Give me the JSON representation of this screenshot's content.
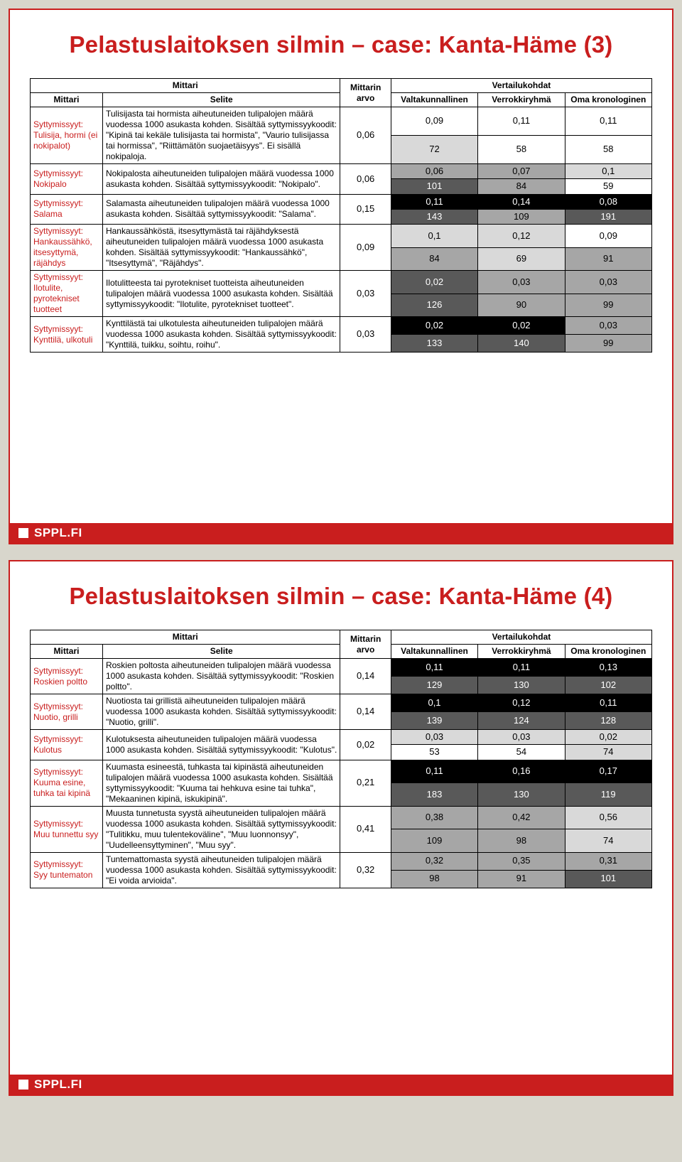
{
  "footer": "SPPL.FI",
  "col_widths": {
    "mittari": 100,
    "selite": 328,
    "arvo": 70,
    "comp": 120
  },
  "font_sizes": {
    "title": 33,
    "table_text": 12,
    "num": 13,
    "footer": 17
  },
  "shade_map": {
    "white": {
      "bg": "#ffffff",
      "fg": "#000000"
    },
    "lgray": {
      "bg": "#d9d9d9",
      "fg": "#000000"
    },
    "mgray": {
      "bg": "#a6a6a6",
      "fg": "#000000"
    },
    "dgray": {
      "bg": "#595959",
      "fg": "#ffffff"
    },
    "black": {
      "bg": "#000000",
      "fg": "#ffffff"
    }
  },
  "headers": {
    "mittari_group": "Mittari",
    "vertailu_group": "Vertailukohdat",
    "mittari": "Mittari",
    "selite": "Selite",
    "arvo": "Mittarin arvo",
    "valtak": "Valtakunnallinen",
    "verrokki": "Verrokkiryhmä",
    "oma": "Oma kronologinen"
  },
  "slides": [
    {
      "title": "Pelastuslaitoksen silmin – case: Kanta-Häme (3)",
      "rows": [
        {
          "mittari": "Syttymissyyt: Tulisija, hormi (ei nokipalot)",
          "selite": "Tulisijasta tai hormista aiheutuneiden tulipalojen määrä vuodessa 1000 asukasta kohden. Sisältää syttymissyykoodit: \"Kipinä tai kekäle tulisijasta tai hormista\", \"Vaurio tulisijassa tai hormissa\", \"Riittämätön suojaetäisyys\". Ei sisällä nokipaloja.",
          "arvo": "0,06",
          "cells": [
            [
              {
                "v": "0,09",
                "s": "white"
              },
              {
                "v": "0,11",
                "s": "white"
              },
              {
                "v": "0,11",
                "s": "white"
              }
            ],
            [
              {
                "v": "72",
                "s": "lgray"
              },
              {
                "v": "58",
                "s": "white"
              },
              {
                "v": "58",
                "s": "white"
              }
            ]
          ]
        },
        {
          "mittari": "Syttymissyyt: Nokipalo",
          "selite": "Nokipalosta aiheutuneiden tulipalojen määrä vuodessa 1000 asukasta kohden. Sisältää syttymissyykoodit: \"Nokipalo\".",
          "arvo": "0,06",
          "cells": [
            [
              {
                "v": "0,06",
                "s": "mgray"
              },
              {
                "v": "0,07",
                "s": "mgray"
              },
              {
                "v": "0,1",
                "s": "lgray"
              }
            ],
            [
              {
                "v": "101",
                "s": "dgray"
              },
              {
                "v": "84",
                "s": "mgray"
              },
              {
                "v": "59",
                "s": "white"
              }
            ]
          ]
        },
        {
          "mittari": "Syttymissyyt: Salama",
          "selite": "Salamasta aiheutuneiden tulipalojen määrä vuodessa 1000 asukasta kohden. Sisältää syttymissyykoodit: \"Salama\".",
          "arvo": "0,15",
          "cells": [
            [
              {
                "v": "0,11",
                "s": "black"
              },
              {
                "v": "0,14",
                "s": "black"
              },
              {
                "v": "0,08",
                "s": "black"
              }
            ],
            [
              {
                "v": "143",
                "s": "dgray"
              },
              {
                "v": "109",
                "s": "mgray"
              },
              {
                "v": "191",
                "s": "dgray"
              }
            ]
          ]
        },
        {
          "mittari": "Syttymissyyt: Hankaussähkö, itsesyttymä, räjähdys",
          "selite": "Hankaussähköstä, itsesyttymästä tai räjähdyksestä aiheutuneiden tulipalojen määrä vuodessa 1000 asukasta kohden. Sisältää syttymissyykoodit: \"Hankaussähkö\", \"Itsesyttymä\", \"Räjähdys\".",
          "arvo": "0,09",
          "cells": [
            [
              {
                "v": "0,1",
                "s": "lgray"
              },
              {
                "v": "0,12",
                "s": "lgray"
              },
              {
                "v": "0,09",
                "s": "white"
              }
            ],
            [
              {
                "v": "84",
                "s": "mgray"
              },
              {
                "v": "69",
                "s": "lgray"
              },
              {
                "v": "91",
                "s": "mgray"
              }
            ]
          ]
        },
        {
          "mittari": "Syttymissyyt: Ilotulite, pyrotekniset tuotteet",
          "selite": "Ilotulitteesta tai pyrotekniset tuotteista aiheutuneiden tulipalojen määrä vuodessa 1000 asukasta kohden. Sisältää syttymissyykoodit: \"Ilotulite, pyrotekniset tuotteet\".",
          "arvo": "0,03",
          "cells": [
            [
              {
                "v": "0,02",
                "s": "dgray"
              },
              {
                "v": "0,03",
                "s": "mgray"
              },
              {
                "v": "0,03",
                "s": "mgray"
              }
            ],
            [
              {
                "v": "126",
                "s": "dgray"
              },
              {
                "v": "90",
                "s": "mgray"
              },
              {
                "v": "99",
                "s": "mgray"
              }
            ]
          ]
        },
        {
          "mittari": "Syttymissyyt: Kynttilä, ulkotuli",
          "selite": "Kynttilästä tai ulkotulesta aiheutuneiden tulipalojen määrä vuodessa 1000 asukasta kohden. Sisältää syttymissyykoodit: \"Kynttilä, tuikku, soihtu, roihu\".",
          "arvo": "0,03",
          "cells": [
            [
              {
                "v": "0,02",
                "s": "black"
              },
              {
                "v": "0,02",
                "s": "black"
              },
              {
                "v": "0,03",
                "s": "mgray"
              }
            ],
            [
              {
                "v": "133",
                "s": "dgray"
              },
              {
                "v": "140",
                "s": "dgray"
              },
              {
                "v": "99",
                "s": "mgray"
              }
            ]
          ]
        }
      ]
    },
    {
      "title": "Pelastuslaitoksen silmin – case: Kanta-Häme (4)",
      "rows": [
        {
          "mittari": "Syttymissyyt: Roskien poltto",
          "selite": "Roskien poltosta aiheutuneiden tulipalojen määrä vuodessa 1000 asukasta kohden. Sisältää syttymissyykoodit: \"Roskien poltto\".",
          "arvo": "0,14",
          "cells": [
            [
              {
                "v": "0,11",
                "s": "black"
              },
              {
                "v": "0,11",
                "s": "black"
              },
              {
                "v": "0,13",
                "s": "black"
              }
            ],
            [
              {
                "v": "129",
                "s": "dgray"
              },
              {
                "v": "130",
                "s": "dgray"
              },
              {
                "v": "102",
                "s": "dgray"
              }
            ]
          ]
        },
        {
          "mittari": "Syttymissyyt: Nuotio, grilli",
          "selite": "Nuotiosta tai grillistä aiheutuneiden tulipalojen määrä vuodessa 1000 asukasta kohden. Sisältää syttymissyykoodit: \"Nuotio, grilli\".",
          "arvo": "0,14",
          "cells": [
            [
              {
                "v": "0,1",
                "s": "black"
              },
              {
                "v": "0,12",
                "s": "black"
              },
              {
                "v": "0,11",
                "s": "black"
              }
            ],
            [
              {
                "v": "139",
                "s": "dgray"
              },
              {
                "v": "124",
                "s": "dgray"
              },
              {
                "v": "128",
                "s": "dgray"
              }
            ]
          ]
        },
        {
          "mittari": "Syttymissyyt: Kulotus",
          "selite": "Kulotuksesta aiheutuneiden tulipalojen määrä vuodessa 1000 asukasta kohden. Sisältää syttymissyykoodit: \"Kulotus\".",
          "arvo": "0,02",
          "cells": [
            [
              {
                "v": "0,03",
                "s": "lgray"
              },
              {
                "v": "0,03",
                "s": "lgray"
              },
              {
                "v": "0,02",
                "s": "lgray"
              }
            ],
            [
              {
                "v": "53",
                "s": "white"
              },
              {
                "v": "54",
                "s": "white"
              },
              {
                "v": "74",
                "s": "lgray"
              }
            ]
          ]
        },
        {
          "mittari": "Syttymissyyt: Kuuma esine, tuhka tai kipinä",
          "selite": "Kuumasta esineestä, tuhkasta tai kipinästä aiheutuneiden tulipalojen määrä vuodessa 1000 asukasta kohden. Sisältää syttymissyykoodit: \"Kuuma tai hehkuva esine tai tuhka\", \"Mekaaninen kipinä, iskukipinä\".",
          "arvo": "0,21",
          "cells": [
            [
              {
                "v": "0,11",
                "s": "black"
              },
              {
                "v": "0,16",
                "s": "black"
              },
              {
                "v": "0,17",
                "s": "black"
              }
            ],
            [
              {
                "v": "183",
                "s": "dgray"
              },
              {
                "v": "130",
                "s": "dgray"
              },
              {
                "v": "119",
                "s": "dgray"
              }
            ]
          ]
        },
        {
          "mittari": "Syttymissyyt: Muu tunnettu syy",
          "selite": "Muusta tunnetusta syystä aiheutuneiden tulipalojen määrä vuodessa 1000 asukasta kohden. Sisältää syttymissyykoodit: \"Tulitikku, muu tulentekoväline\", \"Muu luonnonsyy\", \"Uudelleensyttyminen\", \"Muu syy\".",
          "arvo": "0,41",
          "cells": [
            [
              {
                "v": "0,38",
                "s": "mgray"
              },
              {
                "v": "0,42",
                "s": "mgray"
              },
              {
                "v": "0,56",
                "s": "lgray"
              }
            ],
            [
              {
                "v": "109",
                "s": "mgray"
              },
              {
                "v": "98",
                "s": "mgray"
              },
              {
                "v": "74",
                "s": "lgray"
              }
            ]
          ]
        },
        {
          "mittari": "Syttymissyyt: Syy tuntematon",
          "selite": "Tuntemattomasta syystä aiheutuneiden tulipalojen määrä vuodessa 1000 asukasta kohden. Sisältää syttymissyykoodit: \"Ei voida arvioida\".",
          "arvo": "0,32",
          "cells": [
            [
              {
                "v": "0,32",
                "s": "mgray"
              },
              {
                "v": "0,35",
                "s": "mgray"
              },
              {
                "v": "0,31",
                "s": "mgray"
              }
            ],
            [
              {
                "v": "98",
                "s": "mgray"
              },
              {
                "v": "91",
                "s": "mgray"
              },
              {
                "v": "101",
                "s": "dgray"
              }
            ]
          ]
        }
      ]
    }
  ]
}
